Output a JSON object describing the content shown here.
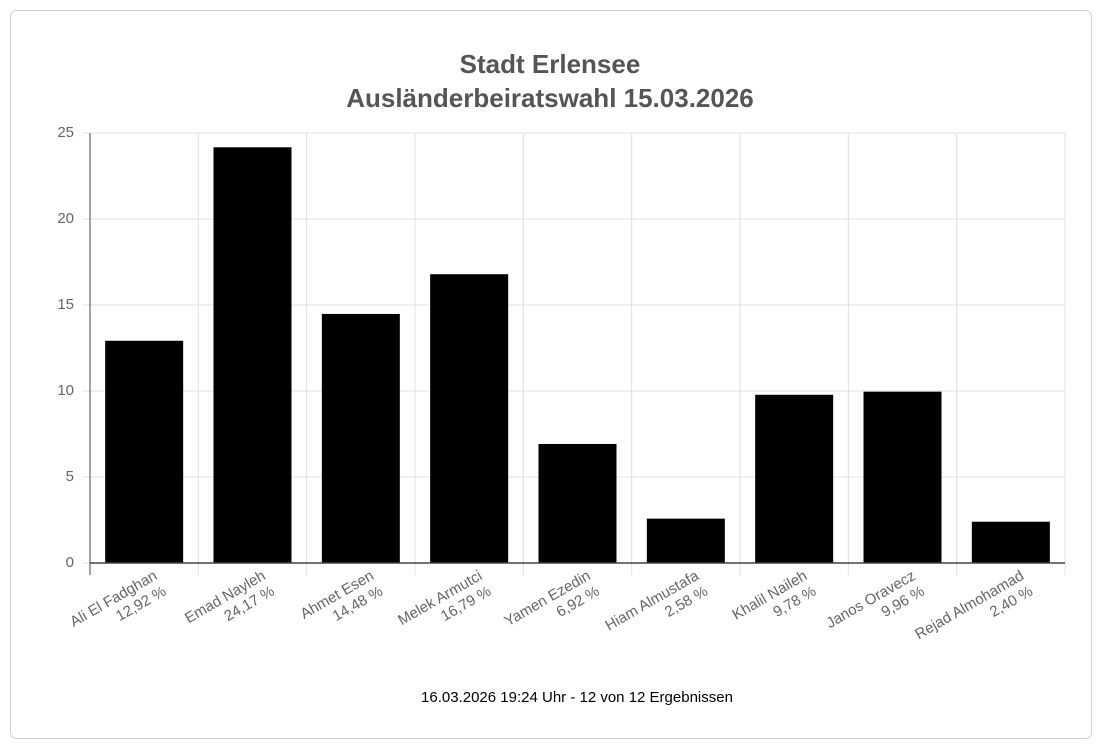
{
  "chart_data": {
    "type": "bar",
    "title": "Stadt Erlensee",
    "subtitle": "Ausländerbeiratswahl 15.03.2026",
    "categories": [
      "Ali El Fadghan",
      "Emad Nayleh",
      "Ahmet Esen",
      "Melek Armutci",
      "Yamen Ezedin",
      "Hiam Almustafa",
      "Khalil Naileh",
      "Janos Oravecz",
      "Rejad Almohamad"
    ],
    "values": [
      12.92,
      24.17,
      14.48,
      16.79,
      6.92,
      2.58,
      9.78,
      9.96,
      2.4
    ],
    "value_labels": [
      "12,92 %",
      "24,17 %",
      "14,48 %",
      "16,79 %",
      "6,92 %",
      "2,58 %",
      "9,78 %",
      "9,96 %",
      "2,40 %"
    ],
    "color": "#000000",
    "ylim": [
      0,
      25
    ],
    "yticks": [
      0,
      5,
      10,
      15,
      20,
      25
    ],
    "grid": true,
    "footnote": "16.03.2026 19:24 Uhr - 12 von 12 Ergebnissen"
  }
}
